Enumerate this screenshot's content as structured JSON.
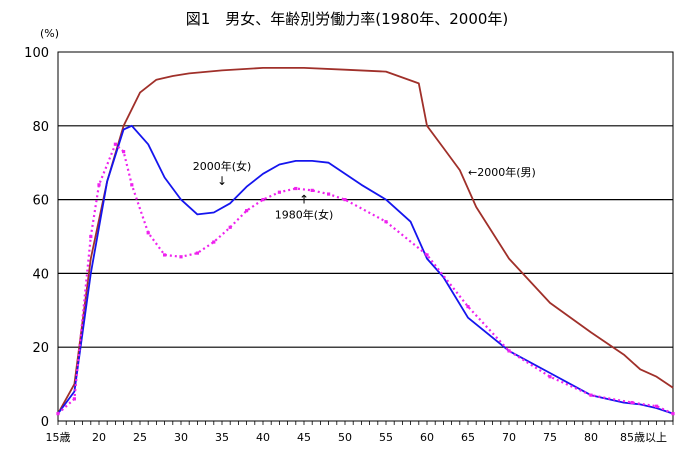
{
  "chart_data": {
    "type": "line",
    "title": "図1　男女、年齢別労働力率(1980年、2000年)",
    "ylabel": "(%)",
    "xlabel": "",
    "ylim": [
      0,
      100
    ],
    "xlim": [
      15,
      90
    ],
    "yticks": [
      0,
      20,
      40,
      60,
      80,
      100
    ],
    "xtick_labels": [
      {
        "x": 15,
        "label": "15歳"
      },
      {
        "x": 20,
        "label": "20"
      },
      {
        "x": 25,
        "label": "25"
      },
      {
        "x": 30,
        "label": "30"
      },
      {
        "x": 35,
        "label": "35"
      },
      {
        "x": 40,
        "label": "40"
      },
      {
        "x": 45,
        "label": "45"
      },
      {
        "x": 50,
        "label": "50"
      },
      {
        "x": 55,
        "label": "55"
      },
      {
        "x": 60,
        "label": "60"
      },
      {
        "x": 65,
        "label": "65"
      },
      {
        "x": 70,
        "label": "70"
      },
      {
        "x": 75,
        "label": "75"
      },
      {
        "x": 80,
        "label": "80"
      },
      {
        "x": 85,
        "label": "85歳以上"
      }
    ],
    "grid": "horizontal",
    "series": [
      {
        "name": "2000年(男)",
        "color": "#a0302a",
        "marker": "none",
        "x": [
          15,
          17,
          19,
          21,
          23,
          25,
          27,
          29,
          31,
          35,
          40,
          45,
          50,
          55,
          59,
          60,
          62,
          64,
          66,
          70,
          75,
          80,
          84,
          86,
          88,
          90
        ],
        "values": [
          2,
          10,
          44,
          65,
          80,
          89,
          92.5,
          93.5,
          94.2,
          95,
          95.7,
          95.7,
          95.2,
          94.7,
          91.5,
          80,
          74,
          68,
          58,
          44,
          32,
          24,
          18,
          14,
          12,
          9
        ]
      },
      {
        "name": "2000年(女)",
        "color": "#1515ee",
        "marker": "none",
        "x": [
          15,
          17,
          19,
          21,
          23,
          24,
          26,
          28,
          30,
          32,
          34,
          36,
          38,
          40,
          42,
          44,
          46,
          48,
          50,
          52,
          55,
          58,
          60,
          62,
          65,
          70,
          75,
          80,
          84,
          86,
          88,
          90
        ],
        "values": [
          2,
          8,
          40,
          65,
          79,
          80,
          75,
          66,
          60,
          56,
          56.5,
          59,
          63.5,
          67,
          69.5,
          70.5,
          70.5,
          70,
          67,
          64,
          60,
          54,
          44,
          39,
          28,
          19,
          13,
          7,
          5,
          4.5,
          3.5,
          2
        ]
      },
      {
        "name": "1980年(女)",
        "color": "#ee22ee",
        "marker": "square",
        "x": [
          15,
          17,
          19,
          20,
          22,
          23,
          24,
          26,
          28,
          30,
          32,
          34,
          36,
          38,
          40,
          42,
          44,
          46,
          48,
          50,
          55,
          60,
          65,
          70,
          75,
          80,
          85,
          88,
          90
        ],
        "values": [
          2,
          6,
          50,
          64,
          75,
          73,
          64,
          51,
          45,
          44.5,
          45.5,
          48.5,
          52.5,
          57,
          60,
          62,
          63,
          62.5,
          61.5,
          60,
          54,
          45,
          31,
          19,
          12,
          7,
          5,
          4,
          2
        ]
      }
    ],
    "annotations": [
      {
        "id": "men2000",
        "text": "←2000年(男)",
        "x": 65,
        "y": 67.5
      },
      {
        "id": "women2000",
        "text": "2000年(女)",
        "arrow": "↓",
        "x": 35,
        "y": 68
      },
      {
        "id": "women1980",
        "text": "1980年(女)",
        "arrow": "↑",
        "x": 45,
        "y": 57
      }
    ]
  }
}
